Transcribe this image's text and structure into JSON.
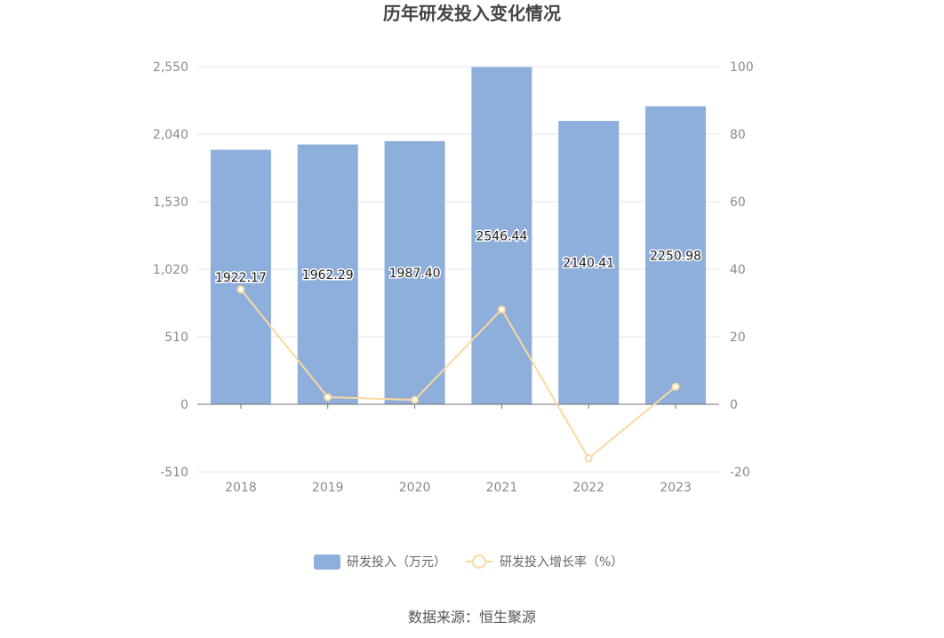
{
  "chart_data": {
    "type": "bar",
    "title": "历年研发投入变化情况",
    "categories": [
      "2018",
      "2019",
      "2020",
      "2021",
      "2022",
      "2023"
    ],
    "series": [
      {
        "name": "研发投入（万元）",
        "type": "bar",
        "axis": "left",
        "values": [
          1922.17,
          1962.29,
          1987.4,
          2546.44,
          2140.41,
          2250.98
        ],
        "labels": [
          "1922.17",
          "1962.29",
          "1987.40",
          "2546.44",
          "2140.41",
          "2250.98"
        ],
        "color": "#8eaedb"
      },
      {
        "name": "研发投入增长率（%）",
        "type": "line",
        "axis": "right",
        "values": [
          34,
          2.1,
          1.3,
          28.1,
          -16,
          5.2
        ],
        "color": "#fad99e"
      }
    ],
    "y_left": {
      "min": -510,
      "max": 2550,
      "ticks": [
        -510,
        0,
        510,
        1020,
        1530,
        2040,
        2550
      ],
      "tick_labels": [
        "-510",
        "0",
        "510",
        "1,020",
        "1,530",
        "2,040",
        "2,550"
      ]
    },
    "y_right": {
      "min": -20,
      "max": 100,
      "ticks": [
        -20,
        0,
        20,
        40,
        60,
        80,
        100
      ],
      "tick_labels": [
        "-20",
        "0",
        "20",
        "40",
        "60",
        "80",
        "100"
      ]
    },
    "grid": true,
    "legend": "bottom-center"
  },
  "source": "数据来源：恒生聚源"
}
